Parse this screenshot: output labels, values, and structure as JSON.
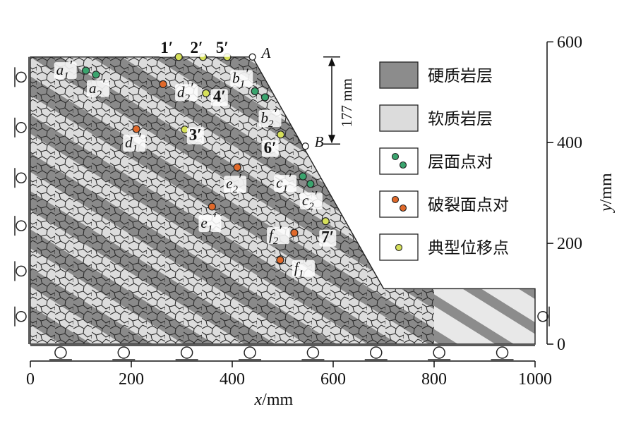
{
  "x_axis": {
    "title": "x/mm",
    "ticks": [
      0,
      200,
      400,
      600,
      800,
      1000
    ],
    "range": [
      0,
      1000
    ]
  },
  "y_axis": {
    "title": "y/mm",
    "ticks": [
      0,
      200,
      400,
      600
    ],
    "range": [
      0,
      600
    ]
  },
  "slope_model": {
    "crest_height_mm": 570,
    "toe_height_mm": 110,
    "crest_right_x_mm": 440,
    "toe_left_x_mm": 700,
    "corners": [
      {
        "name": "A",
        "x": 440,
        "y": 570
      },
      {
        "name": "B",
        "x": 545,
        "y": 393
      }
    ],
    "dimension": {
      "label": "177 mm"
    }
  },
  "legend": [
    {
      "label": "硬质岩层",
      "swatch": "hard-rock",
      "color": "#8c8c8c"
    },
    {
      "label": "软质岩层",
      "swatch": "soft-rock",
      "color": "#dcdcdc"
    },
    {
      "label": "层面点对",
      "swatch": "bedding-pair",
      "color": "#3aa46e"
    },
    {
      "label": "破裂面点对",
      "swatch": "fracture-pair",
      "color": "#e0692a"
    },
    {
      "label": "典型位移点",
      "swatch": "displacement-point",
      "color": "#d6e05a"
    }
  ],
  "points": [
    {
      "label": "1′",
      "x": 294,
      "y": 570,
      "type": "displacement"
    },
    {
      "label": "2′",
      "x": 342,
      "y": 570,
      "type": "displacement"
    },
    {
      "label": "5′",
      "x": 390,
      "y": 570,
      "type": "displacement"
    },
    {
      "label": "4′",
      "x": 348,
      "y": 498,
      "type": "displacement"
    },
    {
      "label": "3′",
      "x": 306,
      "y": 426,
      "type": "displacement"
    },
    {
      "label": "6′",
      "x": 496,
      "y": 416,
      "type": "displacement"
    },
    {
      "label": "7′",
      "x": 585,
      "y": 244,
      "type": "displacement"
    },
    {
      "label": "a1′",
      "x": 110,
      "y": 543,
      "type": "bedding"
    },
    {
      "label": "a2′",
      "x": 130,
      "y": 535,
      "type": "bedding"
    },
    {
      "label": "b1′",
      "x": 445,
      "y": 502,
      "type": "bedding"
    },
    {
      "label": "b2′",
      "x": 465,
      "y": 490,
      "type": "bedding"
    },
    {
      "label": "c1′",
      "x": 540,
      "y": 333,
      "type": "bedding"
    },
    {
      "label": "c2′",
      "x": 555,
      "y": 318,
      "type": "bedding"
    },
    {
      "label": "d1′",
      "x": 210,
      "y": 427,
      "type": "fracture"
    },
    {
      "label": "d2′",
      "x": 263,
      "y": 516,
      "type": "fracture"
    },
    {
      "label": "e1′",
      "x": 360,
      "y": 273,
      "type": "fracture"
    },
    {
      "label": "e2′",
      "x": 410,
      "y": 351,
      "type": "fracture"
    },
    {
      "label": "f1′",
      "x": 495,
      "y": 167,
      "type": "fracture"
    },
    {
      "label": "f2′",
      "x": 523,
      "y": 221,
      "type": "fracture"
    }
  ]
}
